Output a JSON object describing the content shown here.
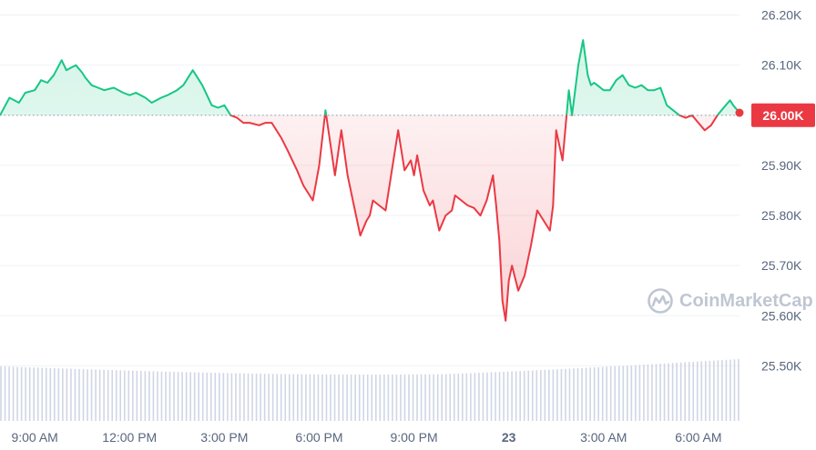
{
  "chart_data": {
    "type": "line",
    "baseline": 26.0,
    "baseline_label": "26.00K",
    "ylim": [
      25.45,
      26.23
    ],
    "yticks": [
      {
        "value": 26.2,
        "label": "26.20K"
      },
      {
        "value": 26.1,
        "label": "26.10K"
      },
      {
        "value": 26.0,
        "label": "26.00K"
      },
      {
        "value": 25.9,
        "label": "25.90K"
      },
      {
        "value": 25.8,
        "label": "25.80K"
      },
      {
        "value": 25.7,
        "label": "25.70K"
      },
      {
        "value": 25.6,
        "label": "25.60K"
      },
      {
        "value": 25.5,
        "label": "25.50K"
      }
    ],
    "xlim": [
      7.9,
      31.3
    ],
    "xticks": [
      {
        "value": 9,
        "label": "9:00 AM"
      },
      {
        "value": 12,
        "label": "12:00 PM"
      },
      {
        "value": 15,
        "label": "3:00 PM"
      },
      {
        "value": 18,
        "label": "6:00 PM"
      },
      {
        "value": 21,
        "label": "9:00 PM"
      },
      {
        "value": 24,
        "label": "23"
      },
      {
        "value": 27,
        "label": "3:00 AM"
      },
      {
        "value": 30,
        "label": "6:00 AM"
      }
    ],
    "x": [
      7.9,
      8.2,
      8.5,
      8.7,
      9.0,
      9.2,
      9.4,
      9.6,
      9.85,
      10.0,
      10.15,
      10.3,
      10.5,
      10.6,
      10.8,
      11.0,
      11.2,
      11.5,
      11.8,
      12.0,
      12.2,
      12.5,
      12.7,
      13.0,
      13.2,
      13.5,
      13.7,
      14.0,
      14.3,
      14.6,
      14.8,
      15.0,
      15.2,
      15.4,
      15.6,
      15.8,
      16.1,
      16.3,
      16.5,
      16.8,
      17.0,
      17.3,
      17.5,
      17.8,
      18.0,
      18.2,
      18.5,
      18.7,
      18.9,
      19.1,
      19.3,
      19.5,
      19.6,
      19.7,
      19.9,
      20.1,
      20.3,
      20.5,
      20.7,
      20.9,
      21.0,
      21.1,
      21.3,
      21.5,
      21.6,
      21.8,
      22.0,
      22.2,
      22.3,
      22.5,
      22.7,
      22.9,
      23.1,
      23.3,
      23.5,
      23.6,
      23.7,
      23.8,
      23.9,
      24.0,
      24.1,
      24.3,
      24.5,
      24.7,
      24.9,
      25.1,
      25.3,
      25.4,
      25.5,
      25.7,
      25.9,
      26.0,
      26.2,
      26.35,
      26.5,
      26.6,
      26.7,
      26.8,
      27.0,
      27.2,
      27.4,
      27.6,
      27.8,
      28.0,
      28.2,
      28.4,
      28.6,
      28.8,
      29.0,
      29.2,
      29.4,
      29.6,
      29.8,
      30.0,
      30.2,
      30.4,
      30.6,
      30.8,
      31.0,
      31.1,
      31.3
    ],
    "series": [
      {
        "values": [
          26.0,
          26.035,
          26.025,
          26.045,
          26.05,
          26.07,
          26.065,
          26.08,
          26.11,
          26.09,
          26.095,
          26.1,
          26.085,
          26.075,
          26.06,
          26.055,
          26.05,
          26.055,
          26.045,
          26.04,
          26.045,
          26.035,
          26.025,
          26.035,
          26.04,
          26.05,
          26.06,
          26.09,
          26.06,
          26.02,
          26.015,
          26.02,
          26.0,
          25.995,
          25.985,
          25.985,
          25.98,
          25.985,
          25.985,
          25.955,
          25.93,
          25.89,
          25.86,
          25.83,
          25.9,
          26.01,
          25.88,
          25.97,
          25.88,
          25.82,
          25.76,
          25.79,
          25.8,
          25.83,
          25.82,
          25.81,
          25.89,
          25.97,
          25.89,
          25.91,
          25.88,
          25.92,
          25.85,
          25.82,
          25.83,
          25.77,
          25.8,
          25.81,
          25.84,
          25.83,
          25.82,
          25.815,
          25.8,
          25.83,
          25.88,
          25.82,
          25.75,
          25.63,
          25.59,
          25.67,
          25.7,
          25.65,
          25.68,
          25.74,
          25.81,
          25.79,
          25.77,
          25.82,
          25.97,
          25.91,
          26.05,
          26.0,
          26.1,
          26.15,
          26.08,
          26.06,
          26.065,
          26.06,
          26.05,
          26.05,
          26.07,
          26.08,
          26.06,
          26.055,
          26.06,
          26.05,
          26.05,
          26.055,
          26.02,
          26.01,
          26.0,
          25.995,
          26.0,
          25.985,
          25.97,
          25.98,
          26.0,
          26.015,
          26.03,
          26.02,
          26.005
        ]
      }
    ],
    "volume_bars": 180,
    "grid": "horizontal",
    "up_color": "#16c784",
    "down_color": "#ea3943",
    "volume_color": "#cfd6e4",
    "marker_color": "#ea3943"
  },
  "watermark": {
    "text": "CoinMarketCap",
    "icon": "coinmarketcap-logo-icon"
  }
}
